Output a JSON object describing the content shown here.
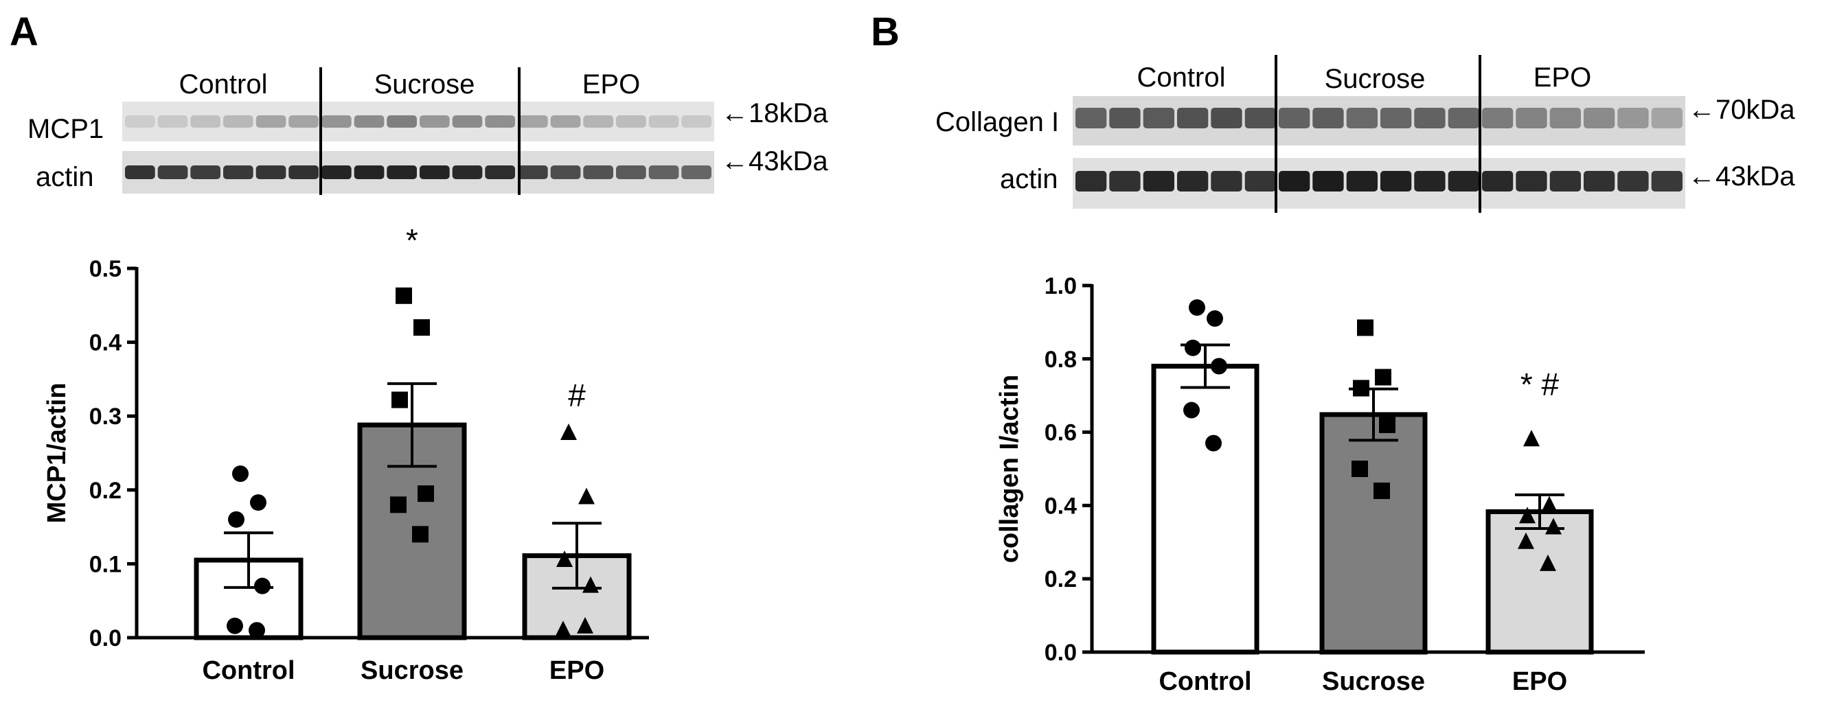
{
  "colors": {
    "control_fill": "#ffffff",
    "sucrose_fill": "#7f7f7f",
    "epo_fill": "#d9d9d9",
    "blot_background": "#dcdcdc",
    "band_dark": "#1a1a1a",
    "ink": "#000000"
  },
  "panels": [
    {
      "letter": "A",
      "blot": {
        "groups": [
          "Control",
          "Sucrose",
          "EPO"
        ],
        "rows": [
          {
            "label": "MCP1",
            "marker": "←18kDa",
            "band_intensity": [
              0.1,
              0.12,
              0.16,
              0.2,
              0.3,
              0.3,
              0.38,
              0.42,
              0.48,
              0.36,
              0.42,
              0.4,
              0.3,
              0.3,
              0.22,
              0.18,
              0.14,
              0.12
            ]
          },
          {
            "label": "actin",
            "marker": "←43kDa",
            "band_intensity": [
              0.85,
              0.8,
              0.8,
              0.82,
              0.84,
              0.86,
              0.92,
              0.92,
              0.92,
              0.92,
              0.9,
              0.88,
              0.78,
              0.72,
              0.7,
              0.66,
              0.62,
              0.6
            ]
          }
        ]
      }
    },
    {
      "letter": "B",
      "blot": {
        "groups": [
          "Control",
          "Sucrose",
          "EPO"
        ],
        "rows": [
          {
            "label": "Collagen I",
            "marker": "←70kDa",
            "band_intensity": [
              0.62,
              0.68,
              0.66,
              0.7,
              0.72,
              0.7,
              0.62,
              0.64,
              0.58,
              0.6,
              0.62,
              0.6,
              0.5,
              0.46,
              0.44,
              0.42,
              0.36,
              0.3
            ]
          },
          {
            "label": "actin",
            "marker": "←43kDa",
            "band_intensity": [
              0.88,
              0.86,
              0.92,
              0.9,
              0.86,
              0.84,
              0.96,
              0.96,
              0.94,
              0.94,
              0.92,
              0.92,
              0.9,
              0.88,
              0.86,
              0.86,
              0.84,
              0.82
            ]
          }
        ]
      }
    }
  ],
  "chart_data": [
    {
      "type": "bar",
      "title": "",
      "xlabel": "",
      "ylabel": "MCP1/actin",
      "ylim": [
        0,
        0.5
      ],
      "yticks": [
        0.0,
        0.1,
        0.2,
        0.3,
        0.4,
        0.5
      ],
      "ytick_labels": [
        "0.0",
        "0.1",
        "0.2",
        "0.3",
        "0.4",
        "0.5"
      ],
      "categories": [
        "Control",
        "Sucrose",
        "EPO"
      ],
      "values": [
        0.105,
        0.288,
        0.111
      ],
      "sem": [
        0.037,
        0.056,
        0.044
      ],
      "points": [
        [
          0.222,
          0.183,
          0.16,
          0.07,
          0.016,
          0.01
        ],
        [
          0.463,
          0.42,
          0.322,
          0.195,
          0.18,
          0.14
        ],
        [
          0.277,
          0.19,
          0.105,
          0.07,
          0.01,
          0.015
        ]
      ],
      "point_markers": [
        "circle",
        "square",
        "triangle"
      ],
      "annotations": [
        "",
        "*",
        "#"
      ]
    },
    {
      "type": "bar",
      "title": "",
      "xlabel": "",
      "ylabel": "collagen I/actin",
      "ylim": [
        0,
        1.0
      ],
      "yticks": [
        0.0,
        0.2,
        0.4,
        0.6,
        0.8,
        1.0
      ],
      "ytick_labels": [
        "0.0",
        "0.2",
        "0.4",
        "0.6",
        "0.8",
        "1.0"
      ],
      "categories": [
        "Control",
        "Sucrose",
        "EPO"
      ],
      "values": [
        0.78,
        0.648,
        0.383
      ],
      "sem": [
        0.058,
        0.07,
        0.046
      ],
      "points": [
        [
          0.94,
          0.91,
          0.83,
          0.78,
          0.66,
          0.57
        ],
        [
          0.885,
          0.75,
          0.72,
          0.62,
          0.5,
          0.44
        ],
        [
          0.58,
          0.4,
          0.37,
          0.34,
          0.3,
          0.24
        ]
      ],
      "point_markers": [
        "circle",
        "square",
        "triangle"
      ],
      "annotations": [
        "",
        "",
        "* #"
      ]
    }
  ]
}
